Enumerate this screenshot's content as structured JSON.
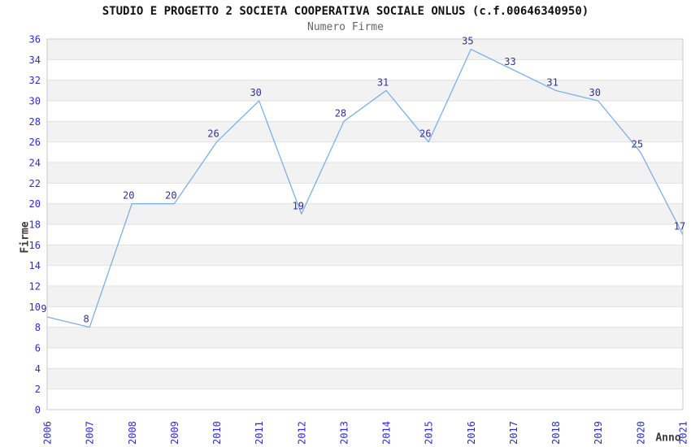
{
  "chart_data": {
    "type": "line",
    "title": "STUDIO E PROGETTO 2 SOCIETA COOPERATIVA SOCIALE ONLUS (c.f.00646340950)",
    "subtitle": "Numero Firme",
    "xlabel": "Anno",
    "ylabel": "Firme",
    "categories": [
      "2006",
      "2007",
      "2008",
      "2009",
      "2010",
      "2011",
      "2012",
      "2013",
      "2014",
      "2015",
      "2016",
      "2017",
      "2018",
      "2019",
      "2020",
      "2021"
    ],
    "values": [
      9,
      8,
      20,
      20,
      26,
      30,
      19,
      28,
      31,
      26,
      35,
      33,
      31,
      30,
      25,
      17
    ],
    "ylim": [
      0,
      36
    ],
    "ytick_step": 2,
    "grid": "horizontal-alternating-bands",
    "legend": "none",
    "colors": {
      "line": "#7cb0e6",
      "tick_label": "#2b2bd8",
      "data_label": "#32328e",
      "band_gray": "#f2f2f2",
      "band_white": "#ffffff",
      "gridline": "#e2e2e2",
      "plot_border": "#c9c9c9",
      "title": "#111111",
      "subtitle": "#666666",
      "axis_title": "#3a3a3a"
    }
  }
}
